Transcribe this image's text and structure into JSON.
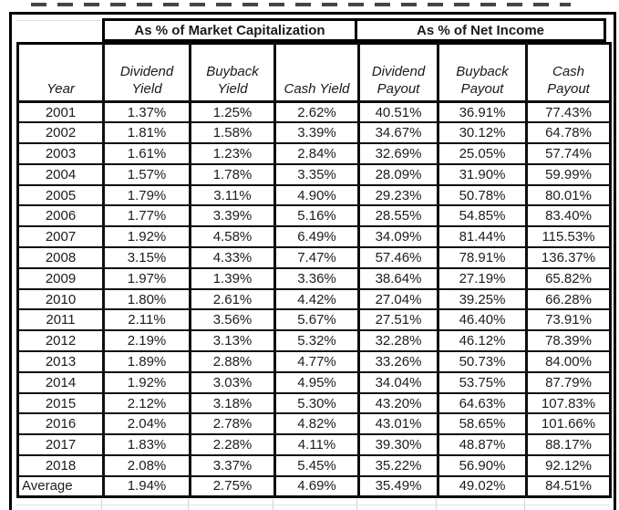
{
  "colors": {
    "background": "#ffffff",
    "border": "#000000",
    "text": "#1a1a1a"
  },
  "chart_data": {
    "type": "table",
    "group_headers": [
      {
        "label": "As % of Market Capitalization",
        "span": 3
      },
      {
        "label": "As % of Net Income",
        "span": 3
      }
    ],
    "columns": [
      {
        "label": "Year",
        "lines": [
          "Year"
        ]
      },
      {
        "label": "Dividend Yield",
        "lines": [
          "Dividend",
          "Yield"
        ]
      },
      {
        "label": "Buyback Yield",
        "lines": [
          "Buyback",
          "Yield"
        ]
      },
      {
        "label": "Cash Yield",
        "lines": [
          "Cash Yield"
        ]
      },
      {
        "label": "Dividend Payout",
        "lines": [
          "Dividend",
          "Payout"
        ]
      },
      {
        "label": "Buyback Payout",
        "lines": [
          "Buyback",
          "Payout"
        ]
      },
      {
        "label": "Cash Payout",
        "lines": [
          "Cash",
          "Payout"
        ]
      }
    ],
    "rows": [
      [
        "2001",
        "1.37%",
        "1.25%",
        "2.62%",
        "40.51%",
        "36.91%",
        "77.43%"
      ],
      [
        "2002",
        "1.81%",
        "1.58%",
        "3.39%",
        "34.67%",
        "30.12%",
        "64.78%"
      ],
      [
        "2003",
        "1.61%",
        "1.23%",
        "2.84%",
        "32.69%",
        "25.05%",
        "57.74%"
      ],
      [
        "2004",
        "1.57%",
        "1.78%",
        "3.35%",
        "28.09%",
        "31.90%",
        "59.99%"
      ],
      [
        "2005",
        "1.79%",
        "3.11%",
        "4.90%",
        "29.23%",
        "50.78%",
        "80.01%"
      ],
      [
        "2006",
        "1.77%",
        "3.39%",
        "5.16%",
        "28.55%",
        "54.85%",
        "83.40%"
      ],
      [
        "2007",
        "1.92%",
        "4.58%",
        "6.49%",
        "34.09%",
        "81.44%",
        "115.53%"
      ],
      [
        "2008",
        "3.15%",
        "4.33%",
        "7.47%",
        "57.46%",
        "78.91%",
        "136.37%"
      ],
      [
        "2009",
        "1.97%",
        "1.39%",
        "3.36%",
        "38.64%",
        "27.19%",
        "65.82%"
      ],
      [
        "2010",
        "1.80%",
        "2.61%",
        "4.42%",
        "27.04%",
        "39.25%",
        "66.28%"
      ],
      [
        "2011",
        "2.11%",
        "3.56%",
        "5.67%",
        "27.51%",
        "46.40%",
        "73.91%"
      ],
      [
        "2012",
        "2.19%",
        "3.13%",
        "5.32%",
        "32.28%",
        "46.12%",
        "78.39%"
      ],
      [
        "2013",
        "1.89%",
        "2.88%",
        "4.77%",
        "33.26%",
        "50.73%",
        "84.00%"
      ],
      [
        "2014",
        "1.92%",
        "3.03%",
        "4.95%",
        "34.04%",
        "53.75%",
        "87.79%"
      ],
      [
        "2015",
        "2.12%",
        "3.18%",
        "5.30%",
        "43.20%",
        "64.63%",
        "107.83%"
      ],
      [
        "2016",
        "2.04%",
        "2.78%",
        "4.82%",
        "43.01%",
        "58.65%",
        "101.66%"
      ],
      [
        "2017",
        "1.83%",
        "2.28%",
        "4.11%",
        "39.30%",
        "48.87%",
        "88.17%"
      ],
      [
        "2018",
        "2.08%",
        "3.37%",
        "5.45%",
        "35.22%",
        "56.90%",
        "92.12%"
      ],
      [
        "Average",
        "1.94%",
        "2.75%",
        "4.69%",
        "35.49%",
        "49.02%",
        "84.51%"
      ]
    ]
  }
}
